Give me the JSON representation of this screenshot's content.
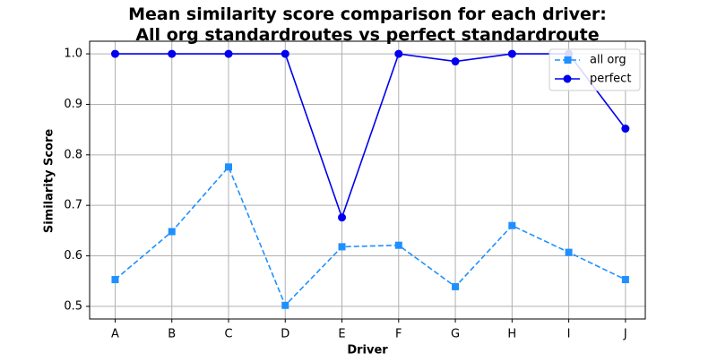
{
  "chart_data": {
    "type": "line",
    "title_line1": "Mean similarity score comparison for each driver:",
    "title_line2": "All org standardroutes vs perfect standardroute",
    "xlabel": "Driver",
    "ylabel": "Similarity Score",
    "categories": [
      "A",
      "B",
      "C",
      "D",
      "E",
      "F",
      "G",
      "H",
      "I",
      "J"
    ],
    "ylim": [
      0.475,
      1.025
    ],
    "yticks": [
      0.5,
      0.6,
      0.7,
      0.8,
      0.9,
      1.0
    ],
    "ytick_labels": [
      "0.5",
      "0.6",
      "0.7",
      "0.8",
      "0.9",
      "1.0"
    ],
    "grid": true,
    "legend_position": "top-right",
    "series": [
      {
        "name": "all org",
        "color": "#1e90ff",
        "line_style": "dashed",
        "marker": "square",
        "values": [
          0.553,
          0.648,
          0.776,
          0.502,
          0.618,
          0.621,
          0.539,
          0.66,
          0.607,
          0.553
        ]
      },
      {
        "name": "perfect",
        "color": "#0000ee",
        "line_style": "solid",
        "marker": "circle",
        "values": [
          1.0,
          1.0,
          1.0,
          1.0,
          0.676,
          1.0,
          0.985,
          1.0,
          1.0,
          0.852
        ]
      }
    ]
  }
}
